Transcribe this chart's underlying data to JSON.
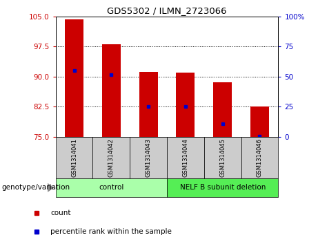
{
  "title": "GDS5302 / ILMN_2723066",
  "samples": [
    "GSM1314041",
    "GSM1314042",
    "GSM1314043",
    "GSM1314044",
    "GSM1314045",
    "GSM1314046"
  ],
  "bar_heights": [
    104.2,
    98.0,
    91.2,
    91.0,
    88.5,
    82.5
  ],
  "bar_bottom": 75,
  "percentile_values": [
    91.5,
    90.4,
    82.5,
    82.5,
    78.2,
    75.2
  ],
  "ylim_left": [
    75,
    105
  ],
  "yticks_left": [
    75,
    82.5,
    90,
    97.5,
    105
  ],
  "ylim_right": [
    0,
    100
  ],
  "yticks_right": [
    0,
    25,
    50,
    75,
    100
  ],
  "ytick_labels_right": [
    "0",
    "25",
    "50",
    "75",
    "100%"
  ],
  "bar_color": "#cc0000",
  "dot_color": "#0000cc",
  "bar_width": 0.5,
  "groups": [
    {
      "label": "control",
      "indices": [
        0,
        1,
        2
      ],
      "color": "#aaffaa"
    },
    {
      "label": "NELF B subunit deletion",
      "indices": [
        3,
        4,
        5
      ],
      "color": "#55ee55"
    }
  ],
  "group_label_prefix": "genotype/variation",
  "legend_items": [
    {
      "label": "count",
      "color": "#cc0000"
    },
    {
      "label": "percentile rank within the sample",
      "color": "#0000cc"
    }
  ],
  "grid_lines": [
    82.5,
    90,
    97.5
  ],
  "background_color": "#ffffff",
  "sample_box_color": "#cccccc",
  "left_tick_color": "#cc0000",
  "right_tick_color": "#0000cc"
}
